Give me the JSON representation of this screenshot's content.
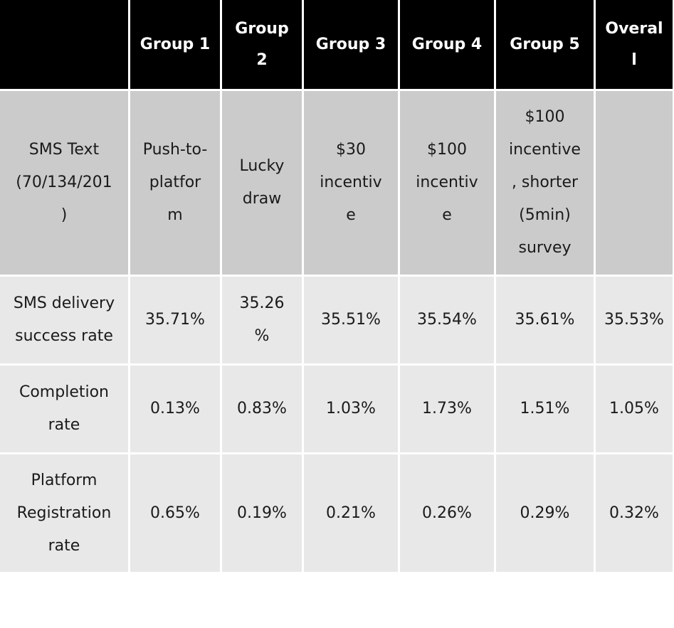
{
  "table": {
    "header": [
      "",
      "Group 1",
      "Group\n2",
      "Group 3",
      "Group 4",
      "Group 5",
      "Overal\nl"
    ],
    "rows": [
      {
        "label": "SMS Text\n(70/134/201\n)",
        "cells": [
          "Push-to-\nplatfor\nm",
          "Lucky\ndraw",
          "$30\nincentiv\ne",
          "$100\nincentiv\ne",
          "$100\nincentive\n, shorter\n(5min)\nsurvey",
          ""
        ]
      },
      {
        "label": "SMS delivery\nsuccess rate",
        "cells": [
          "35.71%",
          "35.26\n%",
          "35.51%",
          "35.54%",
          "35.61%",
          "35.53%"
        ]
      },
      {
        "label": "Completion\nrate",
        "cells": [
          "0.13%",
          "0.83%",
          "1.03%",
          "1.73%",
          "1.51%",
          "1.05%"
        ]
      },
      {
        "label": "Platform\nRegistration\nrate",
        "cells": [
          "0.65%",
          "0.19%",
          "0.21%",
          "0.26%",
          "0.29%",
          "0.32%"
        ]
      }
    ]
  },
  "colors": {
    "header_bg": "#000000",
    "header_text": "#ffffff",
    "row_dark": "#cbcbcb",
    "row_light": "#e8e8e8"
  }
}
